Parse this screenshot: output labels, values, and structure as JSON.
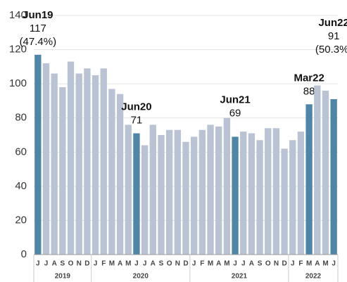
{
  "chart_data": {
    "type": "bar",
    "categories": [
      "J",
      "J",
      "A",
      "S",
      "O",
      "N",
      "D",
      "J",
      "F",
      "M",
      "A",
      "M",
      "J",
      "J",
      "A",
      "S",
      "O",
      "N",
      "D",
      "J",
      "F",
      "M",
      "A",
      "M",
      "J",
      "J",
      "A",
      "S",
      "O",
      "N",
      "D",
      "J",
      "F",
      "M",
      "A",
      "M",
      "J"
    ],
    "values": [
      117,
      112,
      106,
      98,
      113,
      106,
      109,
      105,
      109,
      97,
      94,
      76,
      71,
      64,
      76,
      70,
      73,
      73,
      66,
      69,
      73,
      76,
      75,
      80,
      69,
      72,
      71,
      67,
      74,
      74,
      62,
      67,
      72,
      88,
      99,
      96,
      91
    ],
    "colors": [
      "#4f86a8",
      "#b9c3d3",
      "#b9c3d3",
      "#b9c3d3",
      "#b9c3d3",
      "#b9c3d3",
      "#b9c3d3",
      "#b9c3d3",
      "#b9c3d3",
      "#b9c3d3",
      "#b9c3d3",
      "#b9c3d3",
      "#4f86a8",
      "#b9c3d3",
      "#b9c3d3",
      "#b9c3d3",
      "#b9c3d3",
      "#b9c3d3",
      "#b9c3d3",
      "#b9c3d3",
      "#b9c3d3",
      "#b9c3d3",
      "#b9c3d3",
      "#b9c3d3",
      "#4f86a8",
      "#b9c3d3",
      "#b9c3d3",
      "#b9c3d3",
      "#b9c3d3",
      "#b9c3d3",
      "#b9c3d3",
      "#b9c3d3",
      "#b9c3d3",
      "#4f86a8",
      "#b9c3d3",
      "#b9c3d3",
      "#4f86a8"
    ],
    "annotations": [
      "Jun19",
      null,
      null,
      null,
      null,
      null,
      null,
      null,
      null,
      null,
      null,
      null,
      "Jun20",
      null,
      null,
      null,
      null,
      null,
      null,
      null,
      null,
      null,
      null,
      null,
      "Jun21",
      null,
      null,
      null,
      null,
      null,
      null,
      null,
      null,
      "Mar22",
      null,
      null,
      "Jun22"
    ],
    "notes": [
      "(47.4%)",
      null,
      null,
      null,
      null,
      null,
      null,
      null,
      null,
      null,
      null,
      null,
      null,
      null,
      null,
      null,
      null,
      null,
      null,
      null,
      null,
      null,
      null,
      null,
      null,
      null,
      null,
      null,
      null,
      null,
      null,
      null,
      null,
      null,
      null,
      null,
      "(50.3%)"
    ],
    "groups": [
      {
        "label": "2019",
        "size": 7
      },
      {
        "label": "2020",
        "size": 12
      },
      {
        "label": "2021",
        "size": 12
      },
      {
        "label": "2022",
        "size": 6
      }
    ],
    "ylim": [
      0,
      140
    ],
    "yticks": [
      0,
      20,
      40,
      60,
      80,
      100,
      120,
      140
    ],
    "grid": true
  }
}
